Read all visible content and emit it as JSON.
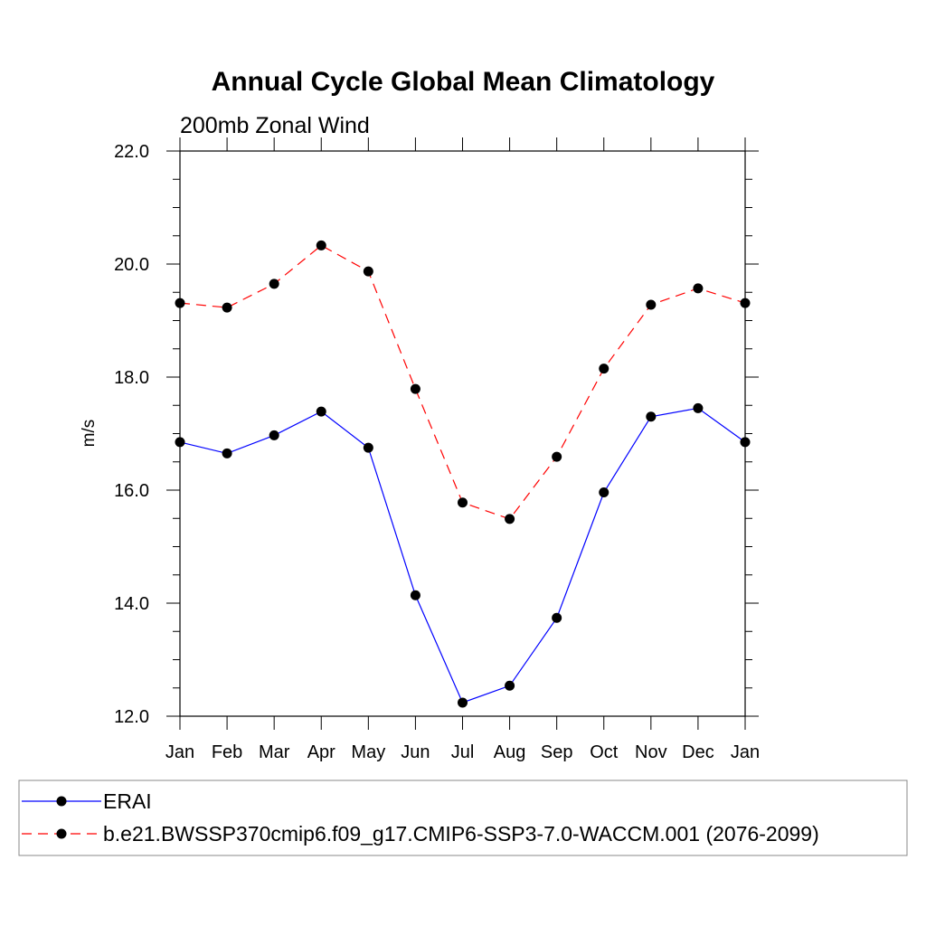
{
  "chart_data": {
    "type": "line",
    "title": "Annual Cycle Global Mean Climatology",
    "subtitle": "200mb Zonal Wind",
    "ylabel": "m/s",
    "xlabel": "",
    "ylim": [
      12.0,
      22.0
    ],
    "yticks": [
      "12.0",
      "14.0",
      "16.0",
      "18.0",
      "20.0",
      "22.0"
    ],
    "categories": [
      "Jan",
      "Feb",
      "Mar",
      "Apr",
      "May",
      "Jun",
      "Jul",
      "Aug",
      "Sep",
      "Oct",
      "Nov",
      "Dec",
      "Jan"
    ],
    "grid": false,
    "legend_position": "bottom",
    "series": [
      {
        "name": "ERAI",
        "color": "#0000ff",
        "dash": "solid",
        "values": [
          16.85,
          16.65,
          16.97,
          17.39,
          16.75,
          14.14,
          12.24,
          12.54,
          13.74,
          15.96,
          17.3,
          17.45,
          16.85
        ]
      },
      {
        "name": "b.e21.BWSSP370cmip6.f09_g17.CMIP6-SSP3-7.0-WACCM.001 (2076-2099)",
        "color": "#ff0000",
        "dash": "dashed",
        "values": [
          19.31,
          19.23,
          19.65,
          20.33,
          19.87,
          17.79,
          15.78,
          15.49,
          16.59,
          18.15,
          19.28,
          19.57,
          19.31
        ]
      }
    ]
  }
}
